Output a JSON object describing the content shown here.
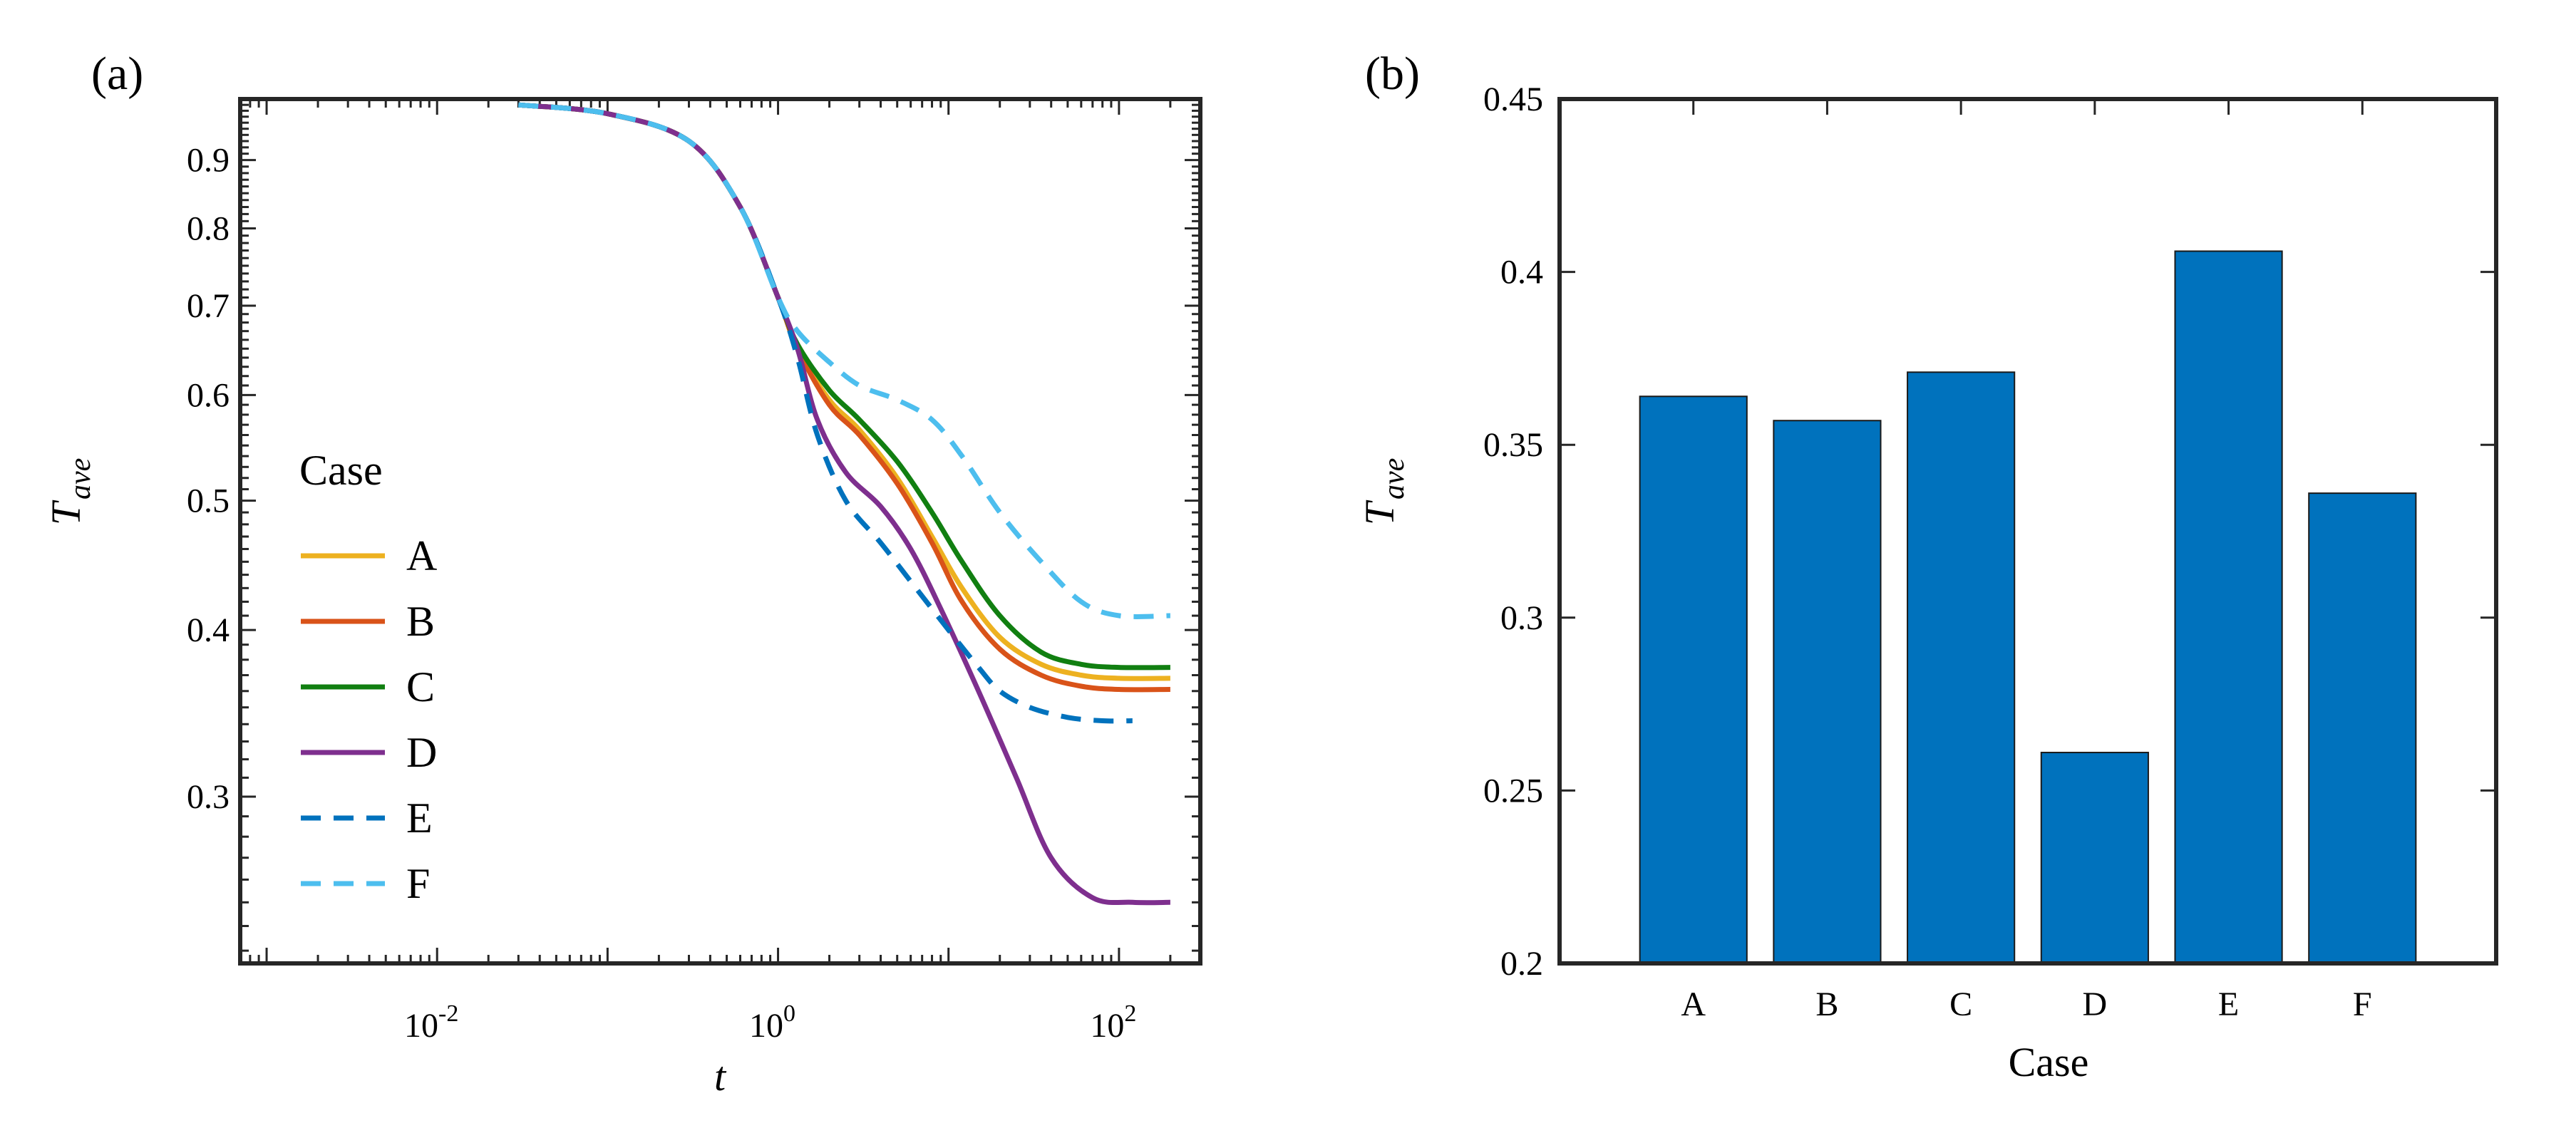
{
  "chart_data": [
    {
      "type": "line",
      "panel_label": "(a)",
      "xscale": "log",
      "yscale": "log",
      "xlim": [
        0.0007,
        300
      ],
      "ylim": [
        0.225,
        1.0
      ],
      "xlabel": "t",
      "ylabel_main": "T",
      "ylabel_sub": "ave",
      "x_tick_labels": [
        {
          "value": 0.01,
          "base": "10",
          "exp": "-2"
        },
        {
          "value": 1,
          "base": "10",
          "exp": "0"
        },
        {
          "value": 100,
          "base": "10",
          "exp": "2"
        }
      ],
      "y_ticks": [
        0.3,
        0.4,
        0.5,
        0.6,
        0.7,
        0.8,
        0.9
      ],
      "y_tick_labels": [
        "0.3",
        "0.4",
        "0.5",
        "0.6",
        "0.7",
        "0.8",
        "0.9"
      ],
      "legend_title": "Case",
      "legend_position": "left",
      "series": [
        {
          "name": "A",
          "color": "#EDB120",
          "dash": "solid",
          "x": [
            0.03,
            0.1,
            0.3,
            0.6,
            1.0,
            1.3,
            2.0,
            3.0,
            5.0,
            8.0,
            12.0,
            20.0,
            35.0,
            60.0,
            100.0,
            200.0
          ],
          "y": [
            0.99,
            0.975,
            0.93,
            0.83,
            0.71,
            0.65,
            0.595,
            0.565,
            0.52,
            0.47,
            0.43,
            0.395,
            0.377,
            0.37,
            0.368,
            0.368
          ]
        },
        {
          "name": "B",
          "color": "#D95319",
          "dash": "solid",
          "x": [
            0.03,
            0.1,
            0.3,
            0.6,
            1.0,
            1.3,
            2.0,
            3.0,
            5.0,
            8.0,
            12.0,
            20.0,
            35.0,
            60.0,
            100.0,
            200.0
          ],
          "y": [
            0.99,
            0.975,
            0.93,
            0.83,
            0.71,
            0.65,
            0.59,
            0.56,
            0.515,
            0.465,
            0.42,
            0.387,
            0.37,
            0.363,
            0.361,
            0.361
          ]
        },
        {
          "name": "C",
          "color": "#117F11",
          "dash": "solid",
          "x": [
            0.03,
            0.1,
            0.3,
            0.6,
            1.0,
            1.3,
            2.0,
            3.0,
            5.0,
            8.0,
            12.0,
            20.0,
            35.0,
            60.0,
            100.0,
            200.0
          ],
          "y": [
            0.99,
            0.975,
            0.93,
            0.83,
            0.71,
            0.655,
            0.605,
            0.575,
            0.535,
            0.49,
            0.45,
            0.41,
            0.385,
            0.377,
            0.375,
            0.375
          ]
        },
        {
          "name": "D",
          "color": "#7E2F8E",
          "dash": "solid",
          "x": [
            0.03,
            0.1,
            0.3,
            0.6,
            1.0,
            1.3,
            1.7,
            2.5,
            4.0,
            6.0,
            9.0,
            15.0,
            25.0,
            40.0,
            70.0,
            120.0,
            200.0
          ],
          "y": [
            0.99,
            0.975,
            0.93,
            0.83,
            0.71,
            0.65,
            0.575,
            0.525,
            0.495,
            0.46,
            0.415,
            0.36,
            0.31,
            0.27,
            0.252,
            0.25,
            0.25
          ]
        },
        {
          "name": "E",
          "color": "#0072BD",
          "dash": "dashed",
          "x": [
            0.03,
            0.1,
            0.3,
            0.6,
            1.0,
            1.3,
            1.7,
            2.5,
            4.0,
            6.0,
            10.0,
            15.0,
            20.0,
            30.0,
            50.0,
            80.0,
            120.0
          ],
          "y": [
            0.99,
            0.975,
            0.93,
            0.83,
            0.71,
            0.64,
            0.56,
            0.5,
            0.465,
            0.435,
            0.4,
            0.375,
            0.36,
            0.35,
            0.344,
            0.342,
            0.342
          ]
        },
        {
          "name": "F",
          "color": "#4DBEEE",
          "dash": "dashed",
          "x": [
            0.03,
            0.1,
            0.3,
            0.6,
            1.0,
            1.3,
            2.0,
            3.0,
            5.0,
            8.0,
            12.0,
            20.0,
            35.0,
            60.0,
            100.0,
            200.0
          ],
          "y": [
            0.99,
            0.975,
            0.93,
            0.83,
            0.71,
            0.67,
            0.635,
            0.61,
            0.595,
            0.575,
            0.54,
            0.49,
            0.45,
            0.42,
            0.41,
            0.41
          ]
        }
      ]
    },
    {
      "type": "bar",
      "panel_label": "(b)",
      "categories": [
        "A",
        "B",
        "C",
        "D",
        "E",
        "F"
      ],
      "values": [
        0.364,
        0.357,
        0.371,
        0.261,
        0.406,
        0.336
      ],
      "ylim": [
        0.2,
        0.45
      ],
      "y_ticks": [
        0.2,
        0.25,
        0.3,
        0.35,
        0.4,
        0.45
      ],
      "y_tick_labels": [
        "0.2",
        "0.25",
        "0.3",
        "0.35",
        "0.4",
        "0.45"
      ],
      "xlabel": "Case",
      "ylabel_main": "T",
      "ylabel_sub": "ave",
      "bar_color": "#0072BD"
    }
  ]
}
